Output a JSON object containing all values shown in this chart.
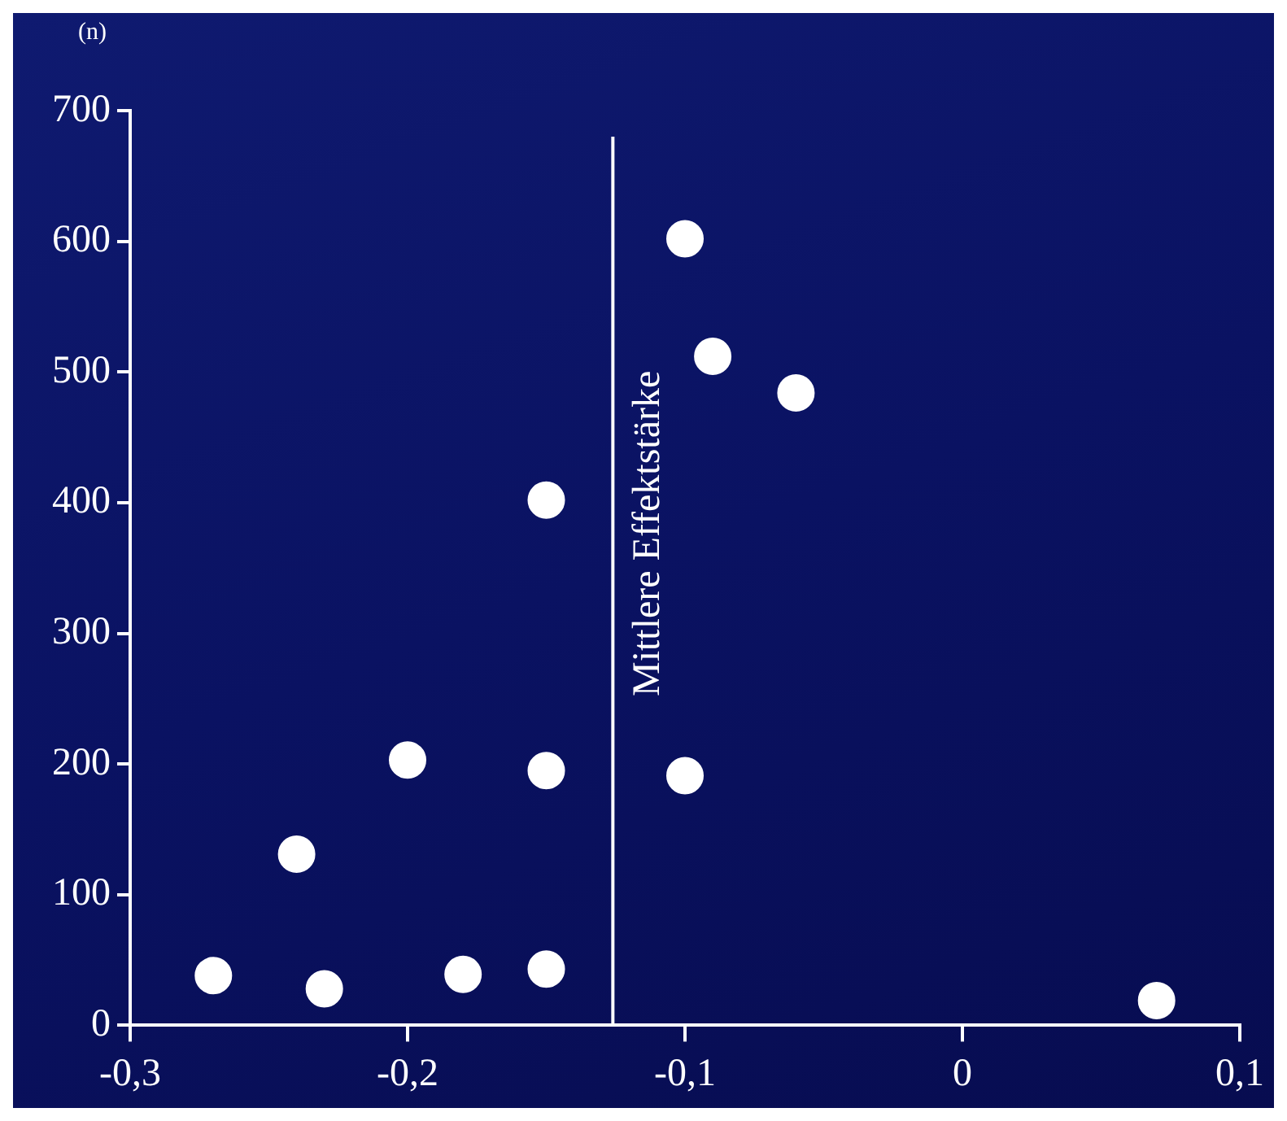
{
  "chart_data": {
    "type": "scatter",
    "ylabel": "(n)",
    "series": [
      {
        "color": "#ffffff",
        "x": [
          -0.27,
          -0.23,
          -0.24,
          -0.2,
          -0.18,
          -0.15,
          -0.15,
          -0.15,
          -0.1,
          -0.09,
          -0.06,
          -0.1,
          0.07
        ],
        "values": [
          38,
          28,
          131,
          203,
          39,
          43,
          195,
          402,
          602,
          512,
          484,
          191,
          19
        ]
      }
    ],
    "marker": "circle",
    "grid": false,
    "legend": false,
    "xlim": [
      -0.3,
      0.1
    ],
    "xticks": [
      {
        "value": -0.3,
        "label": "-0,3"
      },
      {
        "value": -0.2,
        "label": "-0,2"
      },
      {
        "value": -0.1,
        "label": "-0,1"
      },
      0,
      {
        "value": 0.1,
        "label": "0,1"
      }
    ],
    "ylim": [
      0,
      700
    ],
    "yticks": [
      0,
      100,
      200,
      300,
      400,
      500,
      600,
      700
    ],
    "ref_lines": [
      {
        "axis": "x",
        "value": -0.126,
        "label": "Mittlere Effektstärke",
        "color": "#ffffff"
      }
    ]
  }
}
